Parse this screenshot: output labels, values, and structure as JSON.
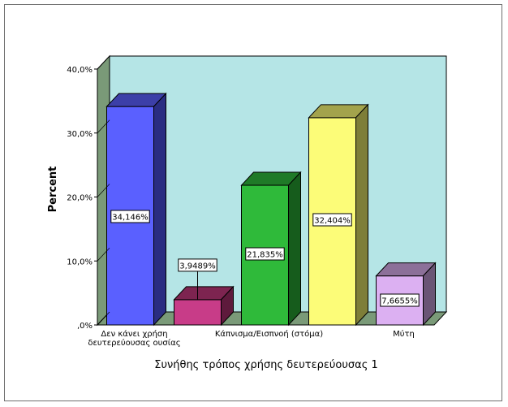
{
  "chart_data": {
    "type": "bar",
    "style": "3d",
    "categories": [
      "Δεν κάνει χρήση δευτερεύουσας ουσίας",
      "",
      "Κάπνισμα/Εισπνοή (στόμα)",
      "",
      "Μύτη"
    ],
    "category_lines": [
      [
        "Δεν κάνει χρήση",
        "δευτερεύουσας ουσίας"
      ],
      [],
      [
        "Κάπνισμα/Εισπνοή (στόμα)"
      ],
      [],
      [
        "Μύτη"
      ]
    ],
    "values": [
      34.146,
      3.9489,
      21.835,
      32.404,
      7.6655
    ],
    "data_labels": [
      "34,146%",
      "3,9489%",
      "21,835%",
      "32,404%",
      "7,6655%"
    ],
    "bar_colors": [
      {
        "front": "#5a60ff",
        "top": "#3c3fa8",
        "side": "#2a2d82"
      },
      {
        "front": "#c83c88",
        "top": "#7d2450",
        "side": "#5e1a3c"
      },
      {
        "front": "#2fba3a",
        "top": "#1f7a27",
        "side": "#165c1c"
      },
      {
        "front": "#fcfc78",
        "top": "#a3a34c",
        "side": "#7e7e38"
      },
      {
        "front": "#dcb0f2",
        "top": "#8c7099",
        "side": "#6a5475"
      }
    ],
    "wall_color": "#b5e5e6",
    "floor_color": "#7a9a78",
    "xlabel": "Συνήθης τρόπος χρήσης δευτερεύουσας 1",
    "ylabel": "Percent",
    "yticks": [
      "40,0%",
      "30,0%",
      "20,0%",
      "10,0%",
      ",0%"
    ],
    "ytick_values": [
      40,
      30,
      20,
      10,
      0
    ],
    "ylim": [
      0,
      40
    ]
  }
}
